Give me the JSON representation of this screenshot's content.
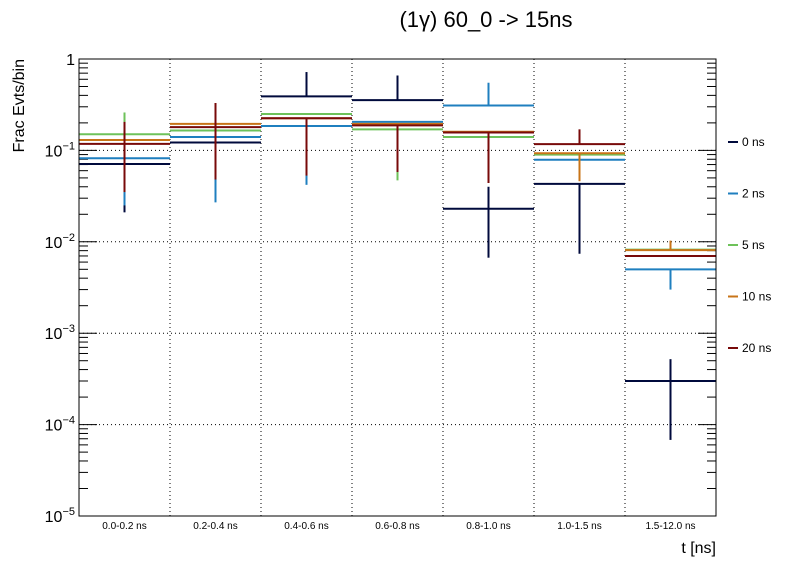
{
  "chart_data": {
    "type": "line",
    "title": "(1γ) 60_0 -> 15ns",
    "xlabel": "t [ns]",
    "ylabel": "Frac Evts/bin",
    "yscale": "log",
    "ylim": [
      1e-05,
      1
    ],
    "ytick_labels": [
      "1",
      "10−1",
      "10−2",
      "10−3",
      "10−4",
      "10−5"
    ],
    "grid": true,
    "legend_position": "right",
    "categories": [
      "0.0-0.2 ns",
      "0.2-0.4 ns",
      "0.4-0.6 ns",
      "0.6-0.8 ns",
      "0.8-1.0 ns",
      "1.0-1.5 ns",
      "1.5-12.0 ns"
    ],
    "series": [
      {
        "name": "0 ns",
        "color": "#000a3c",
        "values": [
          0.071,
          0.122,
          0.39,
          0.355,
          0.023,
          0.043,
          0.0003
        ],
        "err_low": [
          0.021,
          0.122,
          0.39,
          0.355,
          0.0067,
          0.0074,
          6.8e-05
        ],
        "err_high": [
          0.2,
          0.122,
          0.72,
          0.66,
          0.04,
          0.043,
          0.00052
        ]
      },
      {
        "name": "2 ns",
        "color": "#1f7fbf",
        "values": [
          0.082,
          0.14,
          0.185,
          0.205,
          0.31,
          0.079,
          0.005
        ],
        "err_low": [
          0.025,
          0.027,
          0.042,
          0.205,
          0.31,
          0.079,
          0.003
        ],
        "err_high": [
          0.082,
          0.14,
          0.185,
          0.205,
          0.55,
          0.079,
          0.005
        ]
      },
      {
        "name": "5 ns",
        "color": "#6ec25a",
        "values": [
          0.15,
          0.165,
          0.25,
          0.17,
          0.14,
          0.09,
          0.0082
        ],
        "err_low": [
          0.15,
          0.165,
          0.25,
          0.047,
          0.14,
          0.09,
          0.0082
        ],
        "err_high": [
          0.26,
          0.165,
          0.25,
          0.17,
          0.14,
          0.09,
          0.0082
        ]
      },
      {
        "name": "10 ns",
        "color": "#c87418",
        "values": [
          0.13,
          0.195,
          0.225,
          0.195,
          0.16,
          0.093,
          0.0081
        ],
        "err_low": [
          0.13,
          0.195,
          0.225,
          0.195,
          0.16,
          0.046,
          0.0081
        ],
        "err_high": [
          0.13,
          0.195,
          0.225,
          0.195,
          0.16,
          0.093,
          0.0103
        ]
      },
      {
        "name": "20 ns",
        "color": "#780a0a",
        "values": [
          0.118,
          0.18,
          0.225,
          0.188,
          0.157,
          0.117,
          0.007
        ],
        "err_low": [
          0.035,
          0.048,
          0.053,
          0.058,
          0.044,
          0.117,
          0.007
        ],
        "err_high": [
          0.205,
          0.33,
          0.225,
          0.188,
          0.157,
          0.17,
          0.007
        ]
      }
    ]
  }
}
